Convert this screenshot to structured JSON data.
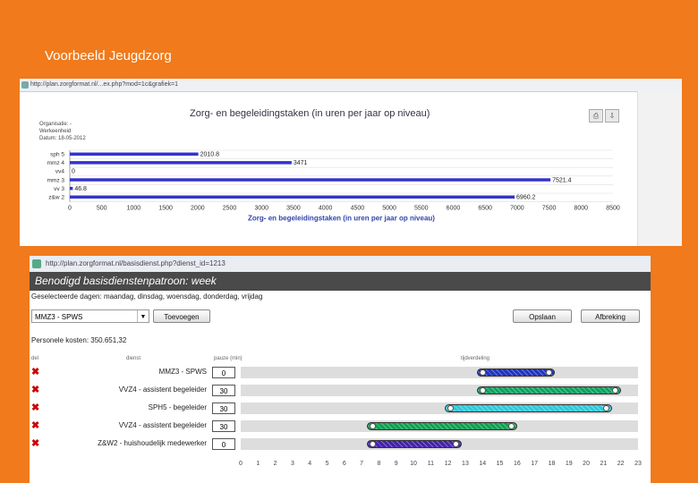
{
  "slide": {
    "title": "Voorbeeld Jeugdzorg"
  },
  "screenshot1": {
    "url": "http://plan.zorgformat.nl/...ex.php?mod=1c&grafiek=1",
    "meta": [
      "Organisatie: -",
      "Werkeenheid",
      "Datum: 18-05-2012"
    ],
    "print_icon": "printer-icon",
    "export_icon": "download-icon"
  },
  "chart_data": {
    "type": "bar",
    "orientation": "horizontal",
    "title": "Zorg- en begeleidingstaken (in uren per jaar op niveau)",
    "xlabel": "Zorg- en begeleidingstaken (in uren per jaar op niveau)",
    "ylabel": "",
    "xlim": [
      0,
      8500
    ],
    "xticks": [
      0,
      500,
      1000,
      1500,
      2000,
      2500,
      3000,
      3500,
      4000,
      4500,
      5000,
      5500,
      6000,
      6500,
      7000,
      7500,
      8000,
      8500
    ],
    "categories": [
      "sph 5",
      "mmz 4",
      "vv4",
      "mmz 3",
      "vv 3",
      "z&w 2"
    ],
    "values": [
      2010.8,
      3471,
      0,
      7521.4,
      46.8,
      6960.2
    ],
    "value_labels": [
      "2010.8",
      "3471",
      "0",
      "7521.4",
      "46.8",
      "6960.2"
    ],
    "bar_color": "#3333cc",
    "grid": true
  },
  "screenshot2": {
    "url": "http://plan.zorgformat.nl/basisdienst.php?dienst_id=1213",
    "header": "Benodigd basisdienstenpatroon: week",
    "days": "Geselecteerde dagen: maandag, dinsdag, woensdag, donderdag, vrijdag",
    "select_value": "MMZ3 - SPWS",
    "add_button": "Toevoegen",
    "save_button": "Opslaan",
    "cancel_button": "Afbreking",
    "cost": "Personele kosten: 350.651,32",
    "col_del": "del",
    "col_dienst": "dienst",
    "col_pauze": "pauze (min)",
    "col_tijd": "tijdverdeling",
    "hours": [
      "0",
      "1",
      "2",
      "3",
      "4",
      "5",
      "6",
      "7",
      "8",
      "9",
      "10",
      "11",
      "12",
      "13",
      "14",
      "15",
      "16",
      "17",
      "18",
      "19",
      "20",
      "21",
      "22",
      "23"
    ],
    "rows": [
      {
        "name": "MMZ3 - SPWS",
        "pauze": "0",
        "start": 13.7,
        "end": 18.2,
        "color": "#2233bb"
      },
      {
        "name": "VVZ4 - assistent begeleider",
        "pauze": "30",
        "start": 13.7,
        "end": 22,
        "color": "#10a060"
      },
      {
        "name": "SPH5 - begeleider",
        "pauze": "30",
        "start": 11.8,
        "end": 21.5,
        "color": "#30c8d8"
      },
      {
        "name": "VVZ4 - assistent begeleider",
        "pauze": "30",
        "start": 7.3,
        "end": 16,
        "color": "#10a050"
      },
      {
        "name": "Z&W2 - huishoudelijk medewerker",
        "pauze": "0",
        "start": 7.3,
        "end": 12.8,
        "color": "#4422aa"
      }
    ],
    "delete_icon": "delete-icon"
  }
}
